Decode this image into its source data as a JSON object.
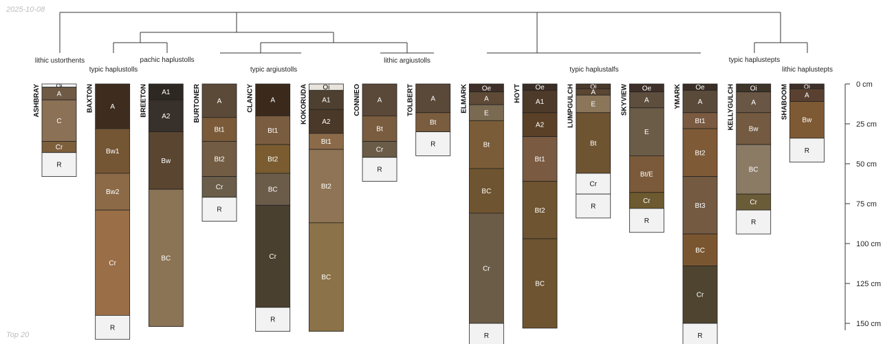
{
  "header": {
    "date": "2025-10-08"
  },
  "footer": {
    "caption": "Top 20"
  },
  "depth_axis": {
    "unit": "cm",
    "ticks": [
      0,
      25,
      50,
      75,
      100,
      125,
      150
    ]
  },
  "group_labels": [
    "lithic ustorthents",
    "typic haplustolls",
    "pachic haplustolls",
    "typic argiustolls",
    "lithic argiustolls",
    "typic haplustalfs",
    "typic haplustepts",
    "lithic haplustepts"
  ],
  "profiles": [
    {
      "name": "ASHBRAY",
      "horizons": [
        {
          "name": "Oi",
          "top": 0,
          "bottom": 2,
          "color": "#ffffff"
        },
        {
          "name": "A",
          "top": 2,
          "bottom": 10,
          "color": "#6e5a45"
        },
        {
          "name": "C",
          "top": 10,
          "bottom": 36,
          "color": "#8b7155"
        },
        {
          "name": "Cr",
          "top": 36,
          "bottom": 43,
          "color": "#7d5f3c"
        },
        {
          "name": "R",
          "top": 43,
          "bottom": 58,
          "color": "#f2f2f2"
        }
      ]
    },
    {
      "name": "BAXTON",
      "horizons": [
        {
          "name": "A",
          "top": 0,
          "bottom": 28,
          "color": "#3e2d1f"
        },
        {
          "name": "Bw1",
          "top": 28,
          "bottom": 56,
          "color": "#745634"
        },
        {
          "name": "Bw2",
          "top": 56,
          "bottom": 79,
          "color": "#8c6a48"
        },
        {
          "name": "Cr",
          "top": 79,
          "bottom": 145,
          "color": "#9a6e47"
        },
        {
          "name": "R",
          "top": 145,
          "bottom": 160,
          "color": "#f2f2f2"
        }
      ]
    },
    {
      "name": "BREETON",
      "horizons": [
        {
          "name": "A1",
          "top": 0,
          "bottom": 10,
          "color": "#2e2823"
        },
        {
          "name": "A2",
          "top": 10,
          "bottom": 30,
          "color": "#38302a"
        },
        {
          "name": "Bw",
          "top": 30,
          "bottom": 66,
          "color": "#5a4531"
        },
        {
          "name": "BC",
          "top": 66,
          "bottom": 152,
          "color": "#8b7355"
        }
      ]
    },
    {
      "name": "BURTONER",
      "horizons": [
        {
          "name": "A",
          "top": 0,
          "bottom": 21,
          "color": "#5c4a38"
        },
        {
          "name": "Bt1",
          "top": 21,
          "bottom": 36,
          "color": "#7a5a38"
        },
        {
          "name": "Bt2",
          "top": 36,
          "bottom": 58,
          "color": "#735c44"
        },
        {
          "name": "Cr",
          "top": 58,
          "bottom": 71,
          "color": "#6a5d4a"
        },
        {
          "name": "R",
          "top": 71,
          "bottom": 86,
          "color": "#f2f2f2"
        }
      ]
    },
    {
      "name": "CLANCY",
      "horizons": [
        {
          "name": "A",
          "top": 0,
          "bottom": 20,
          "color": "#3b2a1c"
        },
        {
          "name": "Bt1",
          "top": 20,
          "bottom": 38,
          "color": "#7a5c40"
        },
        {
          "name": "Bt2",
          "top": 38,
          "bottom": 56,
          "color": "#7a5c30"
        },
        {
          "name": "BC",
          "top": 56,
          "bottom": 76,
          "color": "#6b5c4a"
        },
        {
          "name": "Cr",
          "top": 76,
          "bottom": 140,
          "color": "#4a4030"
        },
        {
          "name": "R",
          "top": 140,
          "bottom": 155,
          "color": "#f2f2f2"
        }
      ]
    },
    {
      "name": "KOKORUDA",
      "horizons": [
        {
          "name": "Oi",
          "top": 0,
          "bottom": 4,
          "color": "#e8e4dc"
        },
        {
          "name": "A1",
          "top": 4,
          "bottom": 16,
          "color": "#4e4030"
        },
        {
          "name": "A2",
          "top": 16,
          "bottom": 31,
          "color": "#4a3828"
        },
        {
          "name": "Bt1",
          "top": 31,
          "bottom": 41,
          "color": "#8b6a4a"
        },
        {
          "name": "Bt2",
          "top": 41,
          "bottom": 87,
          "color": "#8f7555"
        },
        {
          "name": "BC",
          "top": 87,
          "bottom": 155,
          "color": "#8b7248"
        }
      ]
    },
    {
      "name": "CONNIEO",
      "horizons": [
        {
          "name": "A",
          "top": 0,
          "bottom": 20,
          "color": "#5a4838"
        },
        {
          "name": "Bt",
          "top": 20,
          "bottom": 36,
          "color": "#7a5c3e"
        },
        {
          "name": "Cr",
          "top": 36,
          "bottom": 46,
          "color": "#6b5c48"
        },
        {
          "name": "R",
          "top": 46,
          "bottom": 61,
          "color": "#f2f2f2"
        }
      ]
    },
    {
      "name": "TOLBERT",
      "horizons": [
        {
          "name": "A",
          "top": 0,
          "bottom": 18,
          "color": "#5a4838"
        },
        {
          "name": "Bt",
          "top": 18,
          "bottom": 30,
          "color": "#7a5c3e"
        },
        {
          "name": "R",
          "top": 30,
          "bottom": 45,
          "color": "#f2f2f2"
        }
      ]
    },
    {
      "name": "ELMARK",
      "horizons": [
        {
          "name": "Oe",
          "top": 0,
          "bottom": 5,
          "color": "#3e3028"
        },
        {
          "name": "A",
          "top": 5,
          "bottom": 13,
          "color": "#5e4a36"
        },
        {
          "name": "E",
          "top": 13,
          "bottom": 23,
          "color": "#7a6a52"
        },
        {
          "name": "Bt",
          "top": 23,
          "bottom": 53,
          "color": "#7a5c38"
        },
        {
          "name": "BC",
          "top": 53,
          "bottom": 81,
          "color": "#6e5430"
        },
        {
          "name": "Cr",
          "top": 81,
          "bottom": 150,
          "color": "#6b5c48"
        },
        {
          "name": "R",
          "top": 150,
          "bottom": 165,
          "color": "#f2f2f2"
        }
      ]
    },
    {
      "name": "HOYT",
      "horizons": [
        {
          "name": "Oe",
          "top": 0,
          "bottom": 4,
          "color": "#3a2e26"
        },
        {
          "name": "A1",
          "top": 4,
          "bottom": 18,
          "color": "#4e3a28"
        },
        {
          "name": "A2",
          "top": 18,
          "bottom": 33,
          "color": "#5a4026"
        },
        {
          "name": "Bt1",
          "top": 33,
          "bottom": 61,
          "color": "#7a5a40"
        },
        {
          "name": "Bt2",
          "top": 61,
          "bottom": 97,
          "color": "#6e5430"
        },
        {
          "name": "BC",
          "top": 97,
          "bottom": 153,
          "color": "#6e5430"
        }
      ]
    },
    {
      "name": "LUMPGULCH",
      "horizons": [
        {
          "name": "Oi",
          "top": 0,
          "bottom": 3,
          "color": "#4a3a2c"
        },
        {
          "name": "A",
          "top": 3,
          "bottom": 7,
          "color": "#5a4632"
        },
        {
          "name": "E",
          "top": 7,
          "bottom": 18,
          "color": "#8b765a"
        },
        {
          "name": "Bt",
          "top": 18,
          "bottom": 56,
          "color": "#6e5430"
        },
        {
          "name": "Cr",
          "top": 56,
          "bottom": 69,
          "color": "#f2f2f2"
        },
        {
          "name": "R",
          "top": 69,
          "bottom": 84,
          "color": "#f2f2f2"
        }
      ]
    },
    {
      "name": "SKYVIEW",
      "horizons": [
        {
          "name": "Oe",
          "top": 0,
          "bottom": 5,
          "color": "#3e3028"
        },
        {
          "name": "A",
          "top": 5,
          "bottom": 15,
          "color": "#5e4e3e"
        },
        {
          "name": "E",
          "top": 15,
          "bottom": 45,
          "color": "#6b5c48"
        },
        {
          "name": "Bt/E",
          "top": 45,
          "bottom": 68,
          "color": "#7a5a3a"
        },
        {
          "name": "Cr",
          "top": 68,
          "bottom": 78,
          "color": "#6e5a30"
        },
        {
          "name": "R",
          "top": 78,
          "bottom": 93,
          "color": "#f2f2f2"
        }
      ]
    },
    {
      "name": "YMARK",
      "horizons": [
        {
          "name": "Oe",
          "top": 0,
          "bottom": 4,
          "color": "#3a2e26"
        },
        {
          "name": "A",
          "top": 4,
          "bottom": 18,
          "color": "#5a4a3a"
        },
        {
          "name": "Bt1",
          "top": 18,
          "bottom": 28,
          "color": "#7a5a40"
        },
        {
          "name": "Bt2",
          "top": 28,
          "bottom": 58,
          "color": "#7e5a36"
        },
        {
          "name": "Bt3",
          "top": 58,
          "bottom": 94,
          "color": "#735a40"
        },
        {
          "name": "BC",
          "top": 94,
          "bottom": 114,
          "color": "#7a5630"
        },
        {
          "name": "Cr",
          "top": 114,
          "bottom": 150,
          "color": "#4e4430"
        },
        {
          "name": "R",
          "top": 150,
          "bottom": 165,
          "color": "#f2f2f2"
        }
      ]
    },
    {
      "name": "KELLYGULCH",
      "horizons": [
        {
          "name": "Oi",
          "top": 0,
          "bottom": 5,
          "color": "#3e3428"
        },
        {
          "name": "A",
          "top": 5,
          "bottom": 18,
          "color": "#6a5644"
        },
        {
          "name": "Bw",
          "top": 18,
          "bottom": 38,
          "color": "#735a40"
        },
        {
          "name": "BC",
          "top": 38,
          "bottom": 69,
          "color": "#8b7b65"
        },
        {
          "name": "Cr",
          "top": 69,
          "bottom": 79,
          "color": "#6b5c38"
        },
        {
          "name": "R",
          "top": 79,
          "bottom": 94,
          "color": "#f2f2f2"
        }
      ]
    },
    {
      "name": "SHABOOM",
      "horizons": [
        {
          "name": "Oi",
          "top": 0,
          "bottom": 3,
          "color": "#3e3028"
        },
        {
          "name": "A",
          "top": 3,
          "bottom": 11,
          "color": "#5a4030"
        },
        {
          "name": "Bw",
          "top": 11,
          "bottom": 34,
          "color": "#7e5a34"
        },
        {
          "name": "R",
          "top": 34,
          "bottom": 49,
          "color": "#f2f2f2"
        }
      ]
    }
  ]
}
